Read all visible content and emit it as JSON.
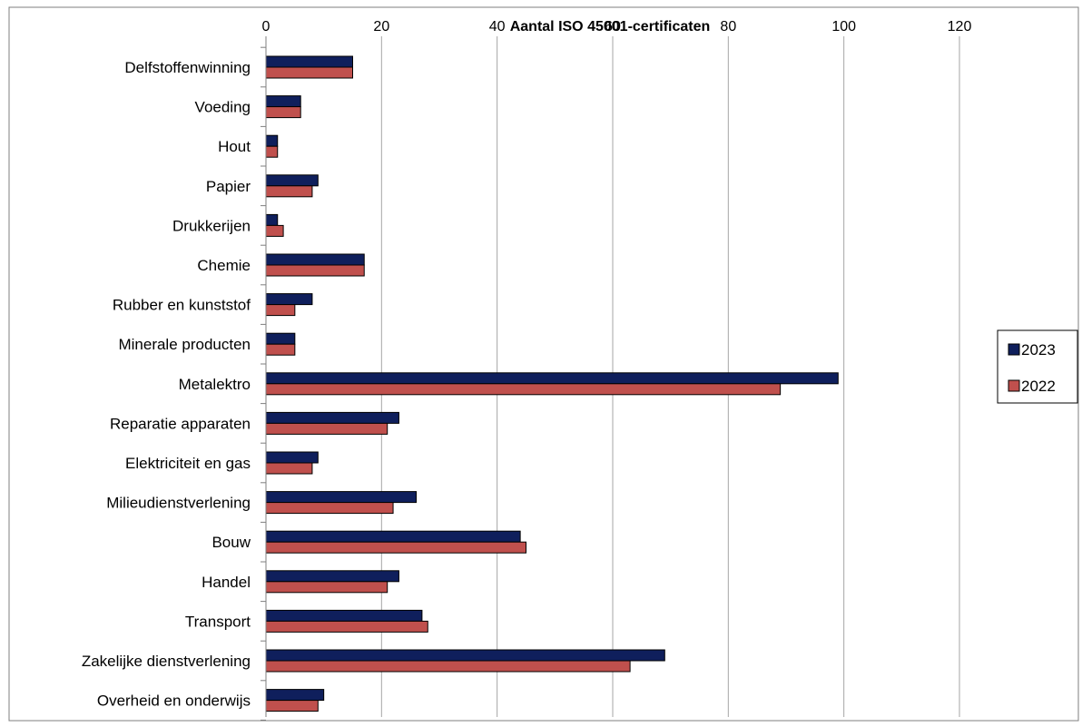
{
  "chart_data": {
    "type": "bar",
    "orientation": "horizontal",
    "title": "Aantal ISO 45001-certificaten",
    "categories": [
      "Delfstoffenwinning",
      "Voeding",
      "Hout",
      "Papier",
      "Drukkerijen",
      "Chemie",
      "Rubber en kunststof",
      "Minerale producten",
      "Metalektro",
      "Reparatie apparaten",
      "Elektriciteit en gas",
      "Milieudienstverlening",
      "Bouw",
      "Handel",
      "Transport",
      "Zakelijke dienstverlening",
      "Overheid en onderwijs"
    ],
    "series": [
      {
        "name": "2023",
        "color": "#0f1f5c",
        "values": [
          15,
          6,
          2,
          9,
          2,
          17,
          8,
          5,
          99,
          23,
          9,
          26,
          44,
          23,
          27,
          69,
          10
        ]
      },
      {
        "name": "2022",
        "color": "#c0504d",
        "values": [
          15,
          6,
          2,
          8,
          3,
          17,
          5,
          5,
          89,
          21,
          8,
          22,
          45,
          21,
          28,
          63,
          9
        ]
      }
    ],
    "xlim": [
      0,
      120
    ],
    "xticks": [
      0,
      20,
      40,
      60,
      80,
      100,
      120
    ],
    "grid": true,
    "legend_position": "right"
  }
}
